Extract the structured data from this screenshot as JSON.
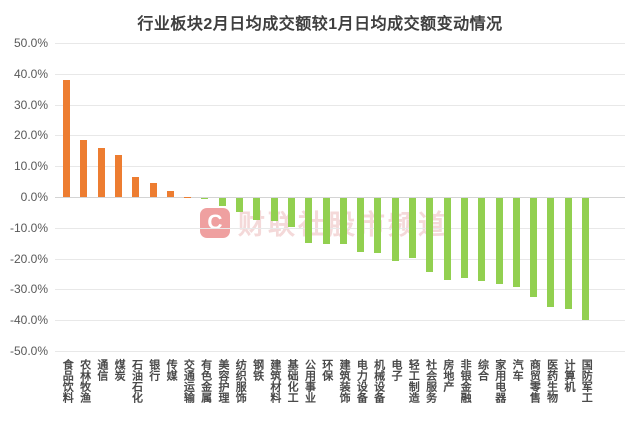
{
  "title": "行业板块2月日均成交额较1月日均成交额变动情况",
  "watermark": {
    "logo_letter": "C",
    "text": "财联社股市频道"
  },
  "chart_data": {
    "type": "bar",
    "title": "行业板块2月日均成交额较1月日均成交额变动情况",
    "xlabel": "",
    "ylabel": "",
    "ylim": [
      -50,
      50
    ],
    "grid": true,
    "legend": "none",
    "positive_color": "#ED7D31",
    "negative_color": "#92D050",
    "value_unit": "%",
    "yticks": [
      {
        "value": 50,
        "label": "50.0%"
      },
      {
        "value": 40,
        "label": "40.0%"
      },
      {
        "value": 30,
        "label": "30.0%"
      },
      {
        "value": 20,
        "label": "20.0%"
      },
      {
        "value": 10,
        "label": "10.0%"
      },
      {
        "value": 0,
        "label": "0.0%"
      },
      {
        "value": -10,
        "label": "-10.0%"
      },
      {
        "value": -20,
        "label": "-20.0%"
      },
      {
        "value": -30,
        "label": "-30.0%"
      },
      {
        "value": -40,
        "label": "-40.0%"
      },
      {
        "value": -50,
        "label": "-50.0%"
      }
    ],
    "categories": [
      "食品饮料",
      "农林牧渔",
      "通信",
      "煤炭",
      "石油石化",
      "银行",
      "传媒",
      "交通运输",
      "有色金属",
      "美容护理",
      "纺织服饰",
      "钢铁",
      "建筑材料",
      "基础化工",
      "公用事业",
      "环保",
      "建筑装饰",
      "电力设备",
      "机械设备",
      "电子",
      "轻工制造",
      "社会服务",
      "房地产",
      "非银金融",
      "综合",
      "家用电器",
      "汽车",
      "商贸零售",
      "医药生物",
      "计算机",
      "国防军工"
    ],
    "values": [
      38.0,
      18.5,
      16.0,
      13.5,
      6.5,
      4.5,
      2.0,
      0.0,
      -0.2,
      -2.5,
      -4.5,
      -7.0,
      -7.5,
      -9.5,
      -14.5,
      -15.0,
      -15.0,
      -17.5,
      -18.0,
      -20.5,
      -19.5,
      -24.0,
      -26.5,
      -26.0,
      -27.0,
      -28.0,
      -29.0,
      -32.0,
      -35.5,
      -36.0,
      -39.5
    ]
  }
}
